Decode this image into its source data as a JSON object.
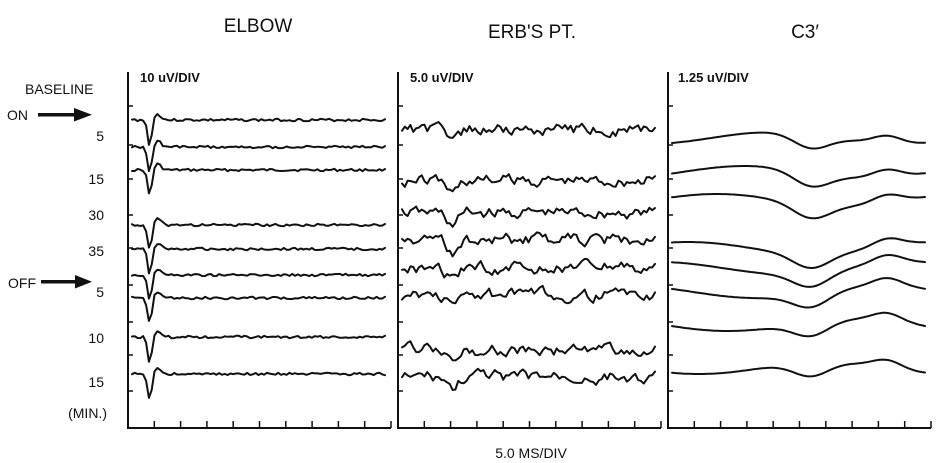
{
  "chart_data": {
    "type": "line",
    "x_scale_label": "5.0 MS/DIV",
    "x_divisions": 10,
    "row_labels": [
      "BASELINE",
      "5",
      "15",
      "30",
      "35",
      "5",
      "10",
      "15",
      "(MIN.)"
    ],
    "markers": [
      {
        "label": "ON",
        "direction": "right-arrow",
        "at_row": "BASELINE"
      },
      {
        "label": "OFF",
        "direction": "right-arrow",
        "at_row": "35"
      }
    ],
    "panels": [
      {
        "title": "ELBOW",
        "scale": "10 uV/DIV"
      },
      {
        "title": "ERB'S PT.",
        "scale": "5.0 uV/DIV"
      },
      {
        "title": "C3′",
        "scale": "1.25 uV/DIV"
      }
    ]
  }
}
